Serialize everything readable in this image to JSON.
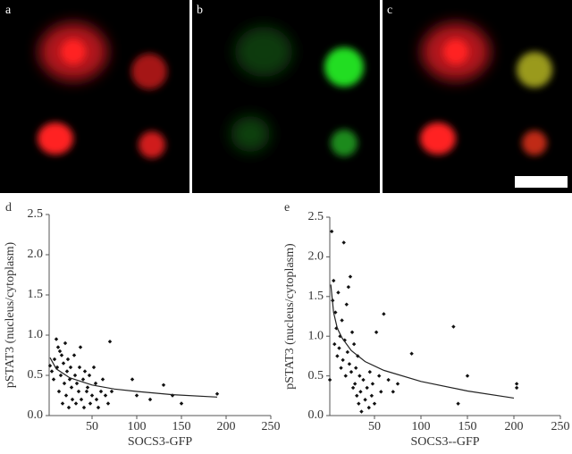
{
  "image_panels": [
    "a",
    "b",
    "c"
  ],
  "chart_data": [
    {
      "type": "scatter",
      "label": "d",
      "xlabel": "SOCS3-GFP",
      "ylabel": "pSTAT3 (nucleus/cytoplasm)",
      "xlim": [
        0,
        250
      ],
      "ylim": [
        0,
        2.5
      ],
      "xticks": [
        50,
        100,
        150,
        200,
        250
      ],
      "yticks": [
        {
          "value": 0,
          "label": "0.0"
        },
        0.5,
        {
          "value": 1,
          "label": "1.0"
        },
        1.5,
        {
          "value": 2,
          "label": "2.0"
        },
        2.5
      ],
      "color": "#111111",
      "x": [
        3,
        5,
        7,
        8,
        10,
        11,
        12,
        13,
        14,
        15,
        16,
        17,
        18,
        19,
        20,
        21,
        22,
        23,
        24,
        25,
        26,
        27,
        28,
        30,
        31,
        32,
        33,
        35,
        36,
        37,
        38,
        40,
        41,
        42,
        44,
        45,
        47,
        48,
        50,
        52,
        54,
        55,
        57,
        60,
        62,
        65,
        68,
        70,
        72,
        95,
        100,
        115,
        130,
        140,
        150,
        190
      ],
      "values": [
        0.62,
        0.55,
        0.45,
        0.7,
        0.95,
        0.6,
        0.85,
        0.3,
        0.8,
        0.5,
        0.75,
        0.15,
        0.65,
        0.4,
        0.9,
        0.25,
        0.55,
        0.7,
        0.1,
        0.45,
        0.6,
        0.35,
        0.2,
        0.75,
        0.5,
        0.15,
        0.4,
        0.3,
        0.6,
        0.85,
        0.2,
        0.45,
        0.1,
        0.55,
        0.3,
        0.35,
        0.5,
        0.15,
        0.25,
        0.6,
        0.4,
        0.2,
        0.1,
        0.3,
        0.45,
        0.25,
        0.15,
        0.92,
        0.3,
        0.45,
        0.25,
        0.2,
        0.38,
        0.25,
        0.15,
        0.27
      ],
      "fit": {
        "x": [
          3,
          10,
          25,
          50,
          75,
          100,
          140,
          190
        ],
        "values": [
          0.72,
          0.58,
          0.47,
          0.38,
          0.33,
          0.3,
          0.26,
          0.23
        ]
      }
    },
    {
      "type": "scatter",
      "label": "e",
      "xlabel": "SOCS3--GFP",
      "ylabel": "pSTAT3 (nucleus/cytoplasm)",
      "xlim": [
        0,
        250
      ],
      "ylim": [
        0,
        2.5
      ],
      "xticks": [
        50,
        100,
        150,
        200,
        250
      ],
      "yticks": [
        {
          "value": 0,
          "label": "0.0"
        },
        0.5,
        {
          "value": 1,
          "label": "1.0"
        },
        1.5,
        {
          "value": 2,
          "label": "2.0"
        },
        2.5
      ],
      "color": "#111111",
      "x": [
        2,
        4,
        5,
        6,
        7,
        8,
        9,
        10,
        11,
        12,
        13,
        14,
        15,
        16,
        17,
        18,
        19,
        20,
        21,
        22,
        23,
        24,
        25,
        26,
        27,
        28,
        29,
        30,
        31,
        32,
        33,
        34,
        35,
        36,
        38,
        40,
        42,
        44,
        45,
        47,
        48,
        50,
        52,
        55,
        57,
        60,
        65,
        70,
        75,
        90,
        135,
        140,
        150,
        203,
        203
      ],
      "values": [
        0.45,
        2.32,
        1.45,
        1.7,
        0.9,
        1.3,
        1.1,
        0.75,
        1.55,
        0.85,
        1.0,
        0.6,
        1.2,
        0.7,
        2.18,
        0.95,
        0.5,
        1.4,
        0.8,
        1.62,
        0.65,
        1.75,
        0.55,
        1.05,
        0.35,
        0.9,
        0.4,
        0.6,
        0.25,
        0.75,
        0.15,
        0.5,
        0.3,
        0.05,
        0.45,
        0.2,
        0.35,
        0.1,
        0.55,
        0.25,
        0.4,
        0.15,
        1.05,
        0.5,
        0.3,
        1.28,
        0.45,
        0.3,
        0.4,
        0.78,
        1.12,
        0.15,
        0.5,
        0.4,
        0.35
      ],
      "fit": {
        "x": [
          3,
          6,
          10,
          15,
          25,
          40,
          60,
          100,
          150,
          200
        ],
        "values": [
          1.65,
          1.3,
          1.1,
          0.98,
          0.82,
          0.68,
          0.57,
          0.43,
          0.31,
          0.22
        ]
      }
    }
  ]
}
